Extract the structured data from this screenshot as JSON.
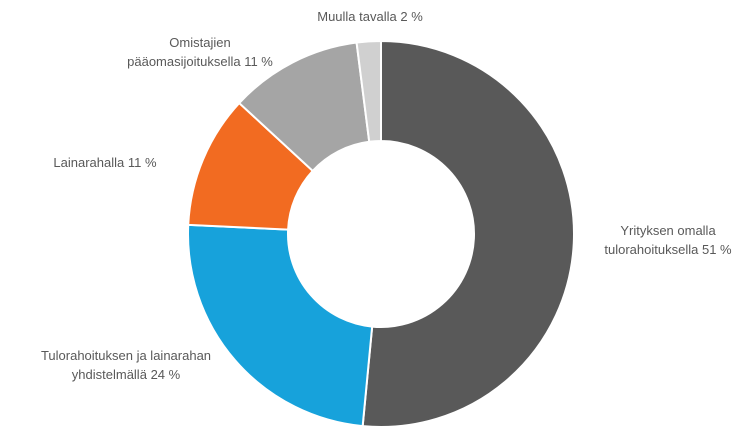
{
  "chart_data": {
    "type": "donut",
    "categories": [
      "Yrityksen omalla tulorahoituksella",
      "Tulorahoituksen ja lainarahan yhdistelmällä",
      "Lainarahalla",
      "Omistajien pääomasijoituksella",
      "Muulla tavalla"
    ],
    "values": [
      51,
      24,
      11,
      11,
      2
    ],
    "value_labels": [
      "51 %",
      "24 %",
      "11 %",
      "11 %",
      "2 %"
    ],
    "colors": [
      "#595959",
      "#17a2db",
      "#f26b21",
      "#a5a5a5",
      "#d0d0d0"
    ]
  }
}
